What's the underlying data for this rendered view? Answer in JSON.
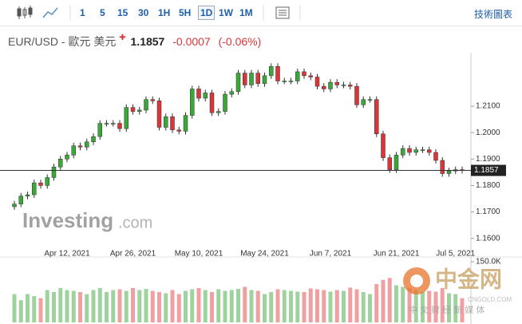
{
  "toolbar": {
    "intervals": [
      "1",
      "5",
      "15",
      "30",
      "1H",
      "5H",
      "1D",
      "1W",
      "1M"
    ],
    "selected": 6,
    "link": "技術圖表"
  },
  "header": {
    "symbol": "EUR/USD - 歐元 美元",
    "change": -0.0007,
    "change_pct": "(-0.06%)"
  },
  "watermarks": {
    "investing": "Investing",
    "investing_suffix": ".com",
    "cngold": "中金网",
    "cngold_sub": "中 文 财 经 新 媒 体",
    "cngold_url": "CNGOLD.COM"
  },
  "chart_data": [
    {
      "type": "candlestick",
      "categories": [
        null,
        null,
        null,
        null,
        null,
        null,
        null,
        null,
        "Apr 12, 2021",
        null,
        null,
        null,
        null,
        null,
        null,
        null,
        null,
        null,
        "Apr 26, 2021",
        null,
        null,
        null,
        null,
        null,
        null,
        null,
        null,
        null,
        "May 10, 2021",
        null,
        null,
        null,
        null,
        null,
        null,
        null,
        null,
        null,
        "May 24, 2021",
        null,
        null,
        null,
        null,
        null,
        null,
        null,
        null,
        null,
        "Jun 7, 2021",
        null,
        null,
        null,
        null,
        null,
        null,
        null,
        null,
        null,
        "Jun 21, 2021",
        null,
        null,
        null,
        null,
        null,
        null,
        null,
        null,
        "Jul 5, 2021",
        null
      ],
      "open": [
        1.172,
        1.173,
        1.176,
        1.1765,
        1.181,
        1.18,
        1.183,
        1.187,
        1.19,
        1.1915,
        1.195,
        1.1945,
        1.1965,
        1.1985,
        1.2035,
        1.2035,
        1.2035,
        1.2015,
        1.2095,
        1.208,
        1.2085,
        1.2125,
        1.212,
        1.202,
        1.206,
        1.201,
        1.2005,
        1.2065,
        1.2165,
        1.213,
        1.215,
        1.2075,
        1.208,
        1.2145,
        1.2155,
        1.2225,
        1.218,
        1.2225,
        1.2185,
        1.2215,
        1.225,
        1.2195,
        1.2195,
        1.2195,
        1.223,
        1.2215,
        1.221,
        1.2175,
        1.2165,
        1.219,
        1.218,
        1.218,
        1.2175,
        1.2105,
        1.2125,
        1.2125,
        1.1995,
        1.1905,
        1.186,
        1.1915,
        1.194,
        1.1925,
        1.1935,
        1.1935,
        1.1925,
        1.1895,
        1.1845,
        1.1855,
        1.186
      ],
      "high": [
        1.1742,
        1.1772,
        1.1777,
        1.1822,
        1.1822,
        1.1842,
        1.1882,
        1.1912,
        1.1927,
        1.1962,
        1.1962,
        1.1977,
        1.1997,
        1.2047,
        1.2047,
        1.2047,
        1.2047,
        1.2107,
        1.2107,
        1.2097,
        1.2137,
        1.2137,
        1.2132,
        1.2072,
        1.2072,
        1.2022,
        1.2077,
        1.2177,
        1.2177,
        1.2162,
        1.2162,
        1.2092,
        1.2157,
        1.2167,
        1.2237,
        1.2237,
        1.2237,
        1.2237,
        1.2227,
        1.2262,
        1.2262,
        1.2207,
        1.2207,
        1.2242,
        1.2242,
        1.2227,
        1.2222,
        1.2187,
        1.2202,
        1.2202,
        1.2192,
        1.2192,
        1.2187,
        1.2137,
        1.2137,
        1.2137,
        1.2007,
        1.1917,
        1.1927,
        1.1952,
        1.1952,
        1.1947,
        1.1947,
        1.1947,
        1.1937,
        1.1907,
        1.1867,
        1.1872,
        1.1872
      ],
      "low": [
        1.1708,
        1.1718,
        1.1748,
        1.1753,
        1.1788,
        1.1788,
        1.1818,
        1.1858,
        1.1888,
        1.1903,
        1.1933,
        1.1933,
        1.1953,
        1.1973,
        1.2023,
        1.2023,
        1.2003,
        1.2003,
        1.2068,
        1.2068,
        1.2073,
        1.2108,
        1.2008,
        1.2008,
        1.1998,
        1.1993,
        1.1993,
        1.2053,
        1.2118,
        1.2118,
        1.2063,
        1.2063,
        1.2068,
        1.2133,
        1.2143,
        1.2168,
        1.2168,
        1.2173,
        1.2173,
        1.2203,
        1.2183,
        1.2183,
        1.2183,
        1.2183,
        1.2203,
        1.2198,
        1.2163,
        1.2153,
        1.2153,
        1.2168,
        1.2168,
        1.2163,
        1.2093,
        1.2093,
        1.2113,
        1.1983,
        1.1893,
        1.1848,
        1.1848,
        1.1903,
        1.1913,
        1.1913,
        1.1923,
        1.1913,
        1.1883,
        1.1833,
        1.1833,
        1.1843,
        1.1845
      ],
      "close": [
        1.173,
        1.176,
        1.1765,
        1.181,
        1.18,
        1.183,
        1.187,
        1.19,
        1.1915,
        1.195,
        1.1945,
        1.1965,
        1.1985,
        1.2035,
        1.2035,
        1.2035,
        1.2015,
        1.2095,
        1.208,
        1.2085,
        1.2125,
        1.212,
        1.202,
        1.206,
        1.201,
        1.2005,
        1.2065,
        1.2165,
        1.213,
        1.215,
        1.2075,
        1.208,
        1.2145,
        1.2155,
        1.2225,
        1.218,
        1.2225,
        1.2185,
        1.2215,
        1.225,
        1.2195,
        1.2195,
        1.2195,
        1.223,
        1.2215,
        1.221,
        1.2175,
        1.2165,
        1.219,
        1.218,
        1.218,
        1.2175,
        1.2105,
        1.2125,
        1.2125,
        1.1995,
        1.1905,
        1.186,
        1.1915,
        1.194,
        1.1925,
        1.1935,
        1.1935,
        1.1925,
        1.1895,
        1.1845,
        1.1855,
        1.186,
        1.1857
      ],
      "up_color": "#3aa838",
      "down_color": "#d9363a",
      "last_price": 1.1857,
      "ylim": [
        1.156,
        1.229
      ],
      "yticks": [
        {
          "value": 1.16,
          "label": "1.1600"
        },
        {
          "value": 1.17,
          "label": "1.1700"
        },
        {
          "value": 1.18,
          "label": "1.1800"
        },
        {
          "value": 1.19,
          "label": "1.1900"
        },
        {
          "value": 1.2,
          "label": "1.2000"
        },
        {
          "value": 1.21,
          "label": "1.2100"
        }
      ]
    },
    {
      "type": "volume",
      "values": [
        70000,
        55000,
        70000,
        65000,
        60000,
        80000,
        75000,
        85000,
        80000,
        78000,
        75000,
        70000,
        80000,
        85000,
        75000,
        80000,
        82000,
        78000,
        85000,
        80000,
        83000,
        78000,
        75000,
        72000,
        80000,
        70000,
        78000,
        82000,
        85000,
        80000,
        75000,
        82000,
        78000,
        80000,
        83000,
        88000,
        80000,
        78000,
        70000,
        75000,
        82000,
        80000,
        78000,
        76000,
        75000,
        84000,
        82000,
        80000,
        76000,
        80000,
        78000,
        86000,
        82000,
        75000,
        70000,
        95000,
        105000,
        110000,
        92000,
        88000,
        85000,
        80000,
        75000,
        78000,
        76000,
        85000,
        72000,
        70000,
        60000
      ],
      "up_color": "#9fd39e",
      "down_color": "#f0a0a2",
      "ylim": [
        0,
        150000
      ],
      "yticks": [
        {
          "value": 150000,
          "label": "150.0K"
        }
      ]
    }
  ]
}
